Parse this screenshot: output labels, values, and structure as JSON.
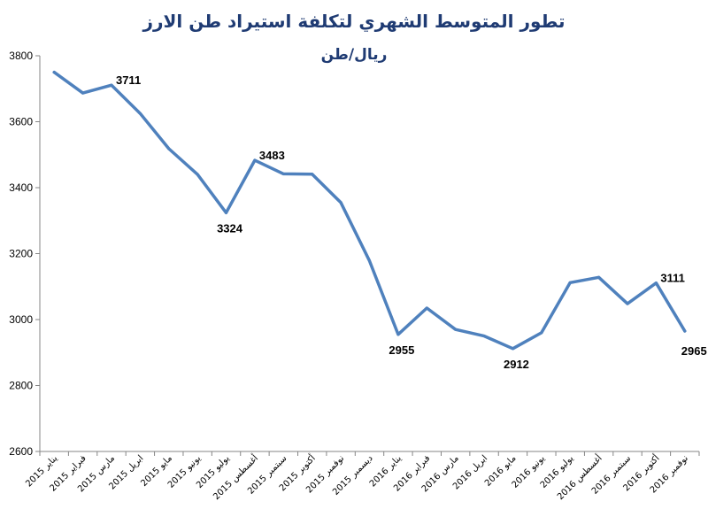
{
  "chart_data": {
    "type": "line",
    "title": "تطور المتوسط الشهري لتكلفة استيراد طن الارز",
    "subtitle": "ريال/طن",
    "ylim": [
      2600,
      3800
    ],
    "yticks": [
      2600,
      2800,
      3000,
      3200,
      3400,
      3600,
      3800
    ],
    "grid": false,
    "legend": "none",
    "line_color": "#4f81bd",
    "categories": [
      "يناير 2015",
      "فبراير 2015",
      "مارس 2015",
      "ابريل 2015",
      "مايو 2015",
      "يونيو 2015",
      "يوليو 2015",
      "أغسطس 2015",
      "سبتمبر 2015",
      "أكتوبر 2015",
      "نوفمبر 2015",
      "ديسمبر 2015",
      "يناير 2016",
      "فبراير 2016",
      "مارس 2016",
      "ابريل 2016",
      "مايو 2016",
      "يونيو 2016",
      "يوليو 2016",
      "أغسطس 2016",
      "سبتمبر 2016",
      "أكتوبر 2016",
      "نوفمبر 2016"
    ],
    "series": [
      {
        "values": [
          3750,
          3687,
          3711,
          3625,
          3518,
          3440,
          3324,
          3483,
          3442,
          3441,
          3355,
          3178,
          2955,
          3035,
          2970,
          2950,
          2912,
          2960,
          3112,
          3128,
          3048,
          3111,
          2965
        ]
      }
    ],
    "data_labels": [
      {
        "index": 2,
        "text": "3711"
      },
      {
        "index": 6,
        "text": "3324"
      },
      {
        "index": 7,
        "text": "3483"
      },
      {
        "index": 12,
        "text": "2955"
      },
      {
        "index": 16,
        "text": "2912"
      },
      {
        "index": 21,
        "text": "3111"
      },
      {
        "index": 22,
        "text": "2965"
      }
    ]
  }
}
